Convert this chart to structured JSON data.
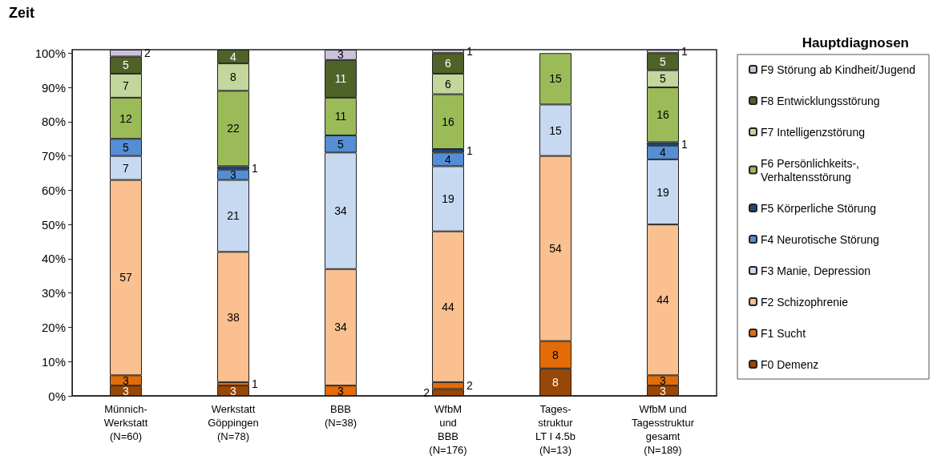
{
  "chart_data": {
    "type": "bar",
    "title": "Zeit",
    "stacked": true,
    "legend_title": "Hauptdiagnosen",
    "legend": "right",
    "grid": false,
    "data_labels": true,
    "categories": [
      "Münnich-\nWerkstatt\n(N=60)",
      "Werkstatt\nGöppingen\n(N=78)",
      "BBB\n(N=38)",
      "WfbM\nund\nBBB\n(N=176)",
      "Tages-\nstruktur\nLT I 4.5b\n(N=13)",
      "WfbM und\nTagesstruktur\ngesamt\n(N=189)"
    ],
    "ylim": [
      0,
      101
    ],
    "yticks": [
      {
        "value": 0,
        "label": "0%"
      },
      {
        "value": 10,
        "label": "10%"
      },
      {
        "value": 20,
        "label": "20%"
      },
      {
        "value": 30,
        "label": "30%"
      },
      {
        "value": 40,
        "label": "40%"
      },
      {
        "value": 50,
        "label": "50%"
      },
      {
        "value": 60,
        "label": "60%"
      },
      {
        "value": 70,
        "label": "70%"
      },
      {
        "value": 80,
        "label": "80%"
      },
      {
        "value": 90,
        "label": "90%"
      },
      {
        "value": 100,
        "label": "100%"
      }
    ],
    "series": [
      {
        "name": "F0 Demenz",
        "color": "#974706",
        "values": [
          3,
          3,
          null,
          2,
          8,
          3
        ]
      },
      {
        "name": "F1 Sucht",
        "color": "#e36c09",
        "values": [
          3,
          1,
          3,
          2,
          8,
          3
        ]
      },
      {
        "name": "F2 Schizophrenie",
        "color": "#fac090",
        "values": [
          57,
          38,
          34,
          44,
          54,
          44
        ]
      },
      {
        "name": "F3 Manie, Depression",
        "color": "#c6d9f1",
        "values": [
          7,
          21,
          34,
          19,
          15,
          19
        ]
      },
      {
        "name": "F4 Neurotische Störung",
        "color": "#558ed5",
        "values": [
          5,
          3,
          5,
          4,
          null,
          4
        ]
      },
      {
        "name": "F5 Körperliche Störung",
        "color": "#1f497d",
        "values": [
          null,
          1,
          null,
          1,
          null,
          1
        ]
      },
      {
        "name": "F6 Persönlichkeits-, Verhaltensstörung",
        "color": "#9bbb59",
        "values": [
          12,
          22,
          11,
          16,
          15,
          16
        ]
      },
      {
        "name": "F7 Intelligenzstörung",
        "color": "#c3d69b",
        "values": [
          7,
          8,
          null,
          6,
          null,
          5
        ]
      },
      {
        "name": "F8 Entwicklungsstörung",
        "color": "#4f6228",
        "values": [
          5,
          4,
          11,
          6,
          null,
          5
        ]
      },
      {
        "name": "F9 Störung ab Kindheit/Jugend",
        "color": "#ccc1da",
        "values": [
          2,
          null,
          3,
          1,
          null,
          1
        ]
      }
    ]
  }
}
